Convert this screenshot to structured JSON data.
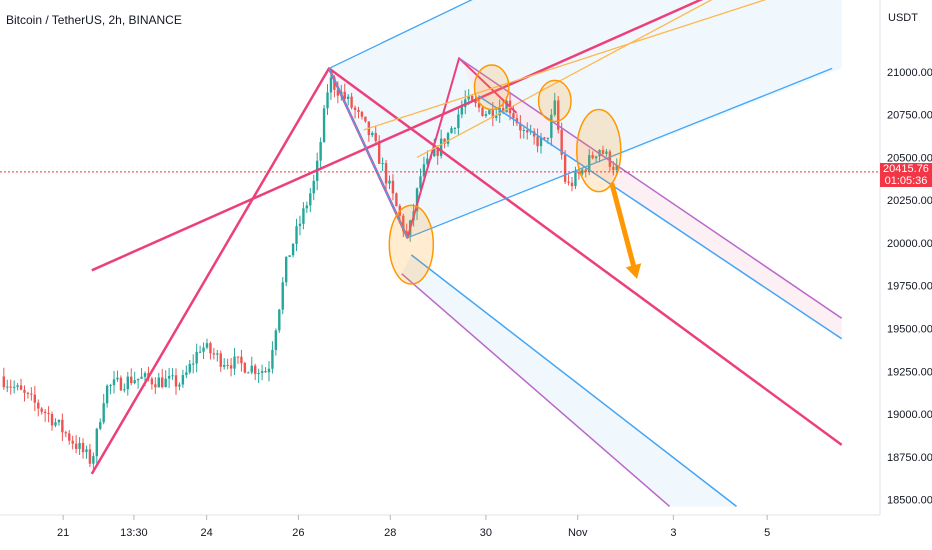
{
  "header": {
    "title": "Bitcoin / TetherUS, 2h, BINANCE"
  },
  "price_axis": {
    "unit": "USDT",
    "last_price": "20415.76",
    "countdown": "01:05:36"
  },
  "colors": {
    "up": "#26a69a",
    "down": "#ef5350",
    "pitchfork_pink": "#ec407a",
    "pitchfork_blue": "#42a5f5",
    "pitchfork_orange": "#ffb74d",
    "pitchfork_purple": "#ba68c8",
    "highlight": "#ff9800",
    "band_blue": "#e3f2fd",
    "band_pink": "#fce4ec",
    "price_line": "#f23645"
  },
  "chart_data": {
    "type": "candlestick",
    "title": "Bitcoin / TetherUS, 2h, BINANCE",
    "ylabel": "USDT",
    "ylim": [
      18410,
      21420
    ],
    "xlim": [
      0,
      46
    ],
    "ytick_values": [
      18500,
      18750,
      19000,
      19250,
      19500,
      19750,
      20000,
      20250,
      20500,
      20750,
      21000
    ],
    "ytick_labels": [
      "18500.00",
      "18750.00",
      "19000.00",
      "19250.00",
      "19500.00",
      "19750.00",
      "20000.00",
      "20250.00",
      "20500.00",
      "20750.00",
      "21000.00"
    ],
    "xticks": [
      {
        "label": "21",
        "x": 3.3
      },
      {
        "label": "13:30",
        "x": 7.0
      },
      {
        "label": "24",
        "x": 10.8
      },
      {
        "label": "26",
        "x": 15.6
      },
      {
        "label": "28",
        "x": 20.4
      },
      {
        "label": "30",
        "x": 25.4
      },
      {
        "label": "Nov",
        "x": 30.2
      },
      {
        "label": "3",
        "x": 35.2
      },
      {
        "label": "5",
        "x": 40.1
      }
    ],
    "last_price": 20415.76,
    "anchors": [
      {
        "x": 0,
        "y": 19220
      },
      {
        "x": 2.5,
        "y": 19000
      },
      {
        "x": 4.8,
        "y": 18720
      },
      {
        "x": 5.5,
        "y": 19150
      },
      {
        "x": 7,
        "y": 19210
      },
      {
        "x": 9.5,
        "y": 19180
      },
      {
        "x": 10.5,
        "y": 19400
      },
      {
        "x": 11.5,
        "y": 19320
      },
      {
        "x": 14.0,
        "y": 19250
      },
      {
        "x": 15.0,
        "y": 19900
      },
      {
        "x": 16.5,
        "y": 20380
      },
      {
        "x": 17.2,
        "y": 20960
      },
      {
        "x": 18.5,
        "y": 20780
      },
      {
        "x": 19.5,
        "y": 20600
      },
      {
        "x": 21.3,
        "y": 20020
      },
      {
        "x": 22.0,
        "y": 20400
      },
      {
        "x": 23.5,
        "y": 20650
      },
      {
        "x": 24.3,
        "y": 20830
      },
      {
        "x": 25.5,
        "y": 20760
      },
      {
        "x": 26.5,
        "y": 20820
      },
      {
        "x": 27.5,
        "y": 20620
      },
      {
        "x": 28.5,
        "y": 20580
      },
      {
        "x": 29.0,
        "y": 20800
      },
      {
        "x": 29.6,
        "y": 20320
      },
      {
        "x": 30.3,
        "y": 20400
      },
      {
        "x": 31.3,
        "y": 20560
      },
      {
        "x": 32.3,
        "y": 20420
      }
    ],
    "drawings": [
      {
        "name": "pink-pitchfork-handle",
        "color": "pink",
        "width": 2.5,
        "pts": [
          [
            4.8,
            18650
          ],
          [
            17.2,
            21020
          ],
          [
            21.3,
            20030
          ]
        ]
      },
      {
        "name": "pink-pitchfork-median",
        "color": "pink",
        "width": 2.5,
        "pts": [
          [
            4.8,
            19840
          ],
          [
            37.0,
            21440
          ]
        ]
      },
      {
        "name": "pink-falling-median",
        "color": "pink",
        "width": 2.5,
        "pts": [
          [
            17.2,
            21020
          ],
          [
            44.0,
            18820
          ]
        ]
      },
      {
        "name": "pink-zigzag",
        "color": "pink",
        "width": 2,
        "pts": [
          [
            17.2,
            21020
          ],
          [
            21.3,
            20030
          ],
          [
            24.0,
            21080
          ],
          [
            27.0,
            20760
          ]
        ]
      },
      {
        "name": "blue-upper-parallel",
        "color": "blue",
        "width": 1.3,
        "pts": [
          [
            17.2,
            21020
          ],
          [
            25.0,
            21440
          ]
        ]
      },
      {
        "name": "blue-lower-parallel",
        "color": "blue",
        "width": 1.3,
        "pts": [
          [
            21.3,
            20030
          ],
          [
            43.5,
            21020
          ]
        ]
      },
      {
        "name": "blue-start-line",
        "color": "blue",
        "width": 1.3,
        "pts": [
          [
            17.2,
            21020
          ],
          [
            21.3,
            20030
          ]
        ]
      },
      {
        "name": "orange-parallel-1",
        "color": "orange",
        "width": 1.3,
        "pts": [
          [
            19.0,
            20660
          ],
          [
            40.5,
            21440
          ]
        ]
      },
      {
        "name": "orange-parallel-2",
        "color": "orange",
        "width": 1.3,
        "pts": [
          [
            21.8,
            20500
          ],
          [
            37.5,
            21440
          ]
        ]
      },
      {
        "name": "purple-upper-fork",
        "color": "purple",
        "width": 1.5,
        "pts": [
          [
            24.0,
            21080
          ],
          [
            44.0,
            19560
          ]
        ]
      },
      {
        "name": "blue-upper-fork",
        "color": "blue",
        "width": 1.5,
        "pts": [
          [
            25.0,
            20860
          ],
          [
            44.0,
            19440
          ]
        ]
      },
      {
        "name": "blue-lower-fork",
        "color": "blue",
        "width": 1.5,
        "pts": [
          [
            21.5,
            19930
          ],
          [
            38.5,
            18460
          ]
        ]
      },
      {
        "name": "purple-lower-fork",
        "color": "purple",
        "width": 1.5,
        "pts": [
          [
            21.0,
            19820
          ],
          [
            35.0,
            18460
          ]
        ]
      }
    ],
    "bands": [
      {
        "name": "upper-blue-band",
        "fill": "blue",
        "pts": [
          [
            17.2,
            21020
          ],
          [
            25.0,
            21440
          ],
          [
            44.0,
            21440
          ],
          [
            44.0,
            21020
          ],
          [
            21.3,
            20030
          ]
        ]
      },
      {
        "name": "upper-pink-band",
        "fill": "pink",
        "pts": [
          [
            24.0,
            21080
          ],
          [
            44.0,
            19560
          ],
          [
            44.0,
            19440
          ],
          [
            25.0,
            20860
          ]
        ]
      },
      {
        "name": "lower-blue-band",
        "fill": "blue",
        "pts": [
          [
            21.5,
            19930
          ],
          [
            38.5,
            18460
          ],
          [
            35.0,
            18460
          ],
          [
            21.0,
            19820
          ]
        ]
      }
    ],
    "highlights": [
      {
        "name": "highlight-circle-low",
        "x": 21.5,
        "y": 19990,
        "rx": 1.15,
        "ry": 230
      },
      {
        "name": "highlight-circle-top-1",
        "x": 25.7,
        "y": 20910,
        "rx": 0.9,
        "ry": 130
      },
      {
        "name": "highlight-circle-top-2",
        "x": 29.0,
        "y": 20830,
        "rx": 0.85,
        "ry": 120
      },
      {
        "name": "highlight-circle-current",
        "x": 31.3,
        "y": 20540,
        "rx": 1.15,
        "ry": 240
      }
    ],
    "arrow": {
      "from": [
        32.0,
        20340
      ],
      "to": [
        33.3,
        19790
      ]
    }
  }
}
